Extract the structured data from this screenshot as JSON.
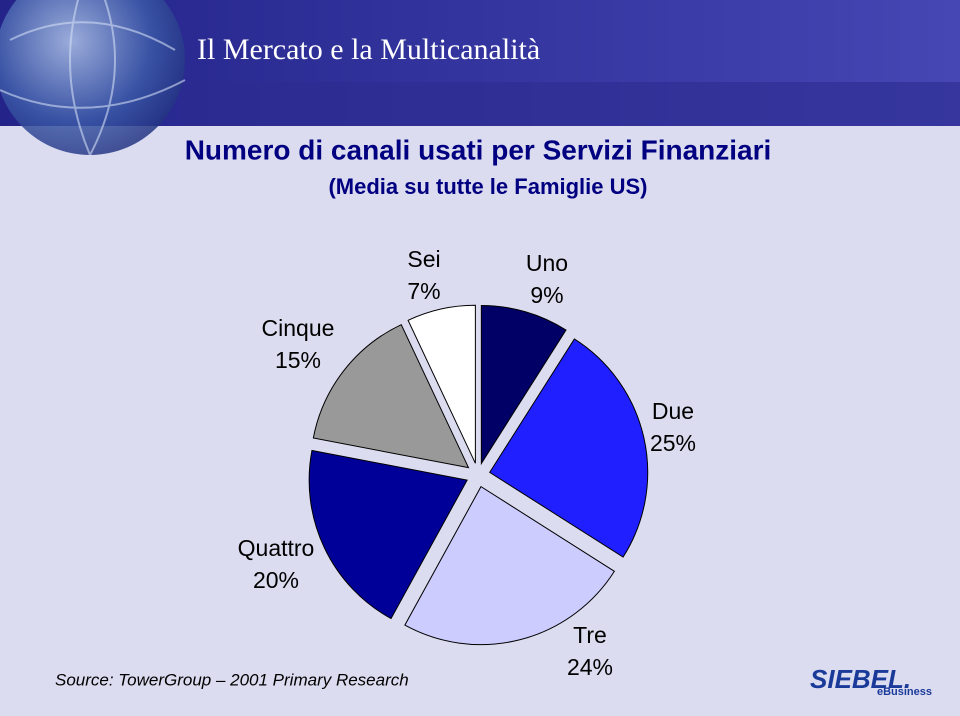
{
  "header": {
    "title": "Il Mercato e la Multicanalità"
  },
  "chart_data": {
    "type": "pie",
    "title": "Numero di canali usati per Servizi Finanziari",
    "subtitle": "(Media su tutte le Famiglie US)",
    "categories": [
      "Uno",
      "Due",
      "Tre",
      "Quattro",
      "Cinque",
      "Sei"
    ],
    "values": [
      9,
      25,
      24,
      20,
      15,
      7
    ],
    "value_labels": [
      "9%",
      "25%",
      "24%",
      "20%",
      "15%",
      "7%"
    ],
    "colors": [
      "#000066",
      "#1f1fff",
      "#ccccff",
      "#000099",
      "#999999",
      "#ffffff"
    ]
  },
  "footer": {
    "source": "Source: TowerGroup – 2001 Primary Research",
    "logo": "SIEBEL.",
    "logo_sub": "eBusiness"
  }
}
